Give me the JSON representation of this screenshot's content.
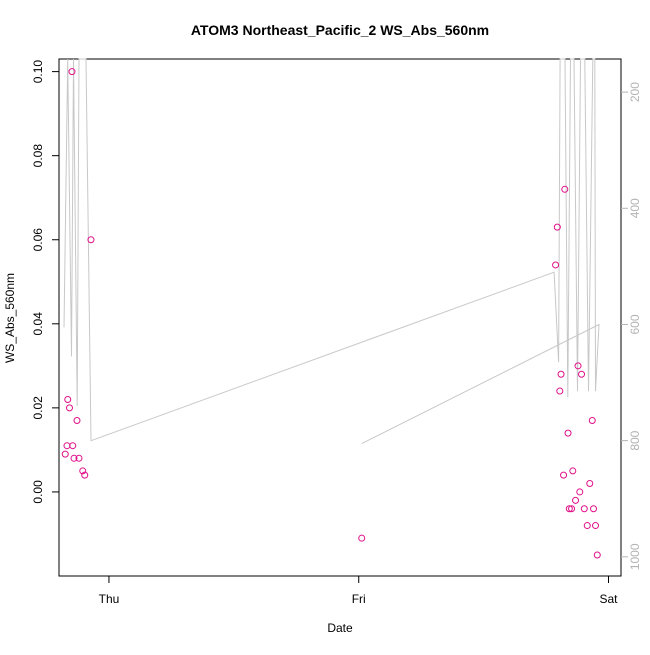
{
  "chart_data": {
    "type": "scatter",
    "title": "ATOM3 Northeast_Pacific_2 WS_Abs_560nm",
    "xlabel": "Date",
    "ylabel": "WS_Abs_560nm",
    "x_ticks": [
      "Thu",
      "Fri",
      "Sat"
    ],
    "xlim": [
      -0.2,
      2.05
    ],
    "ylim": [
      -0.02,
      0.103
    ],
    "y_ticks": [
      "0.00",
      "0.02",
      "0.04",
      "0.06",
      "0.08",
      "0.10"
    ],
    "y_tick_values": [
      0.0,
      0.02,
      0.04,
      0.06,
      0.08,
      0.1
    ],
    "y2_ticks": [
      "200",
      "400",
      "600",
      "800",
      "1000"
    ],
    "y2_tick_values": [
      200,
      400,
      600,
      800,
      1000
    ],
    "y2lim": [
      1033,
      143
    ],
    "grid": false,
    "series": [
      {
        "values_color": "#e0108a",
        "points": [
          {
            "x": -0.175,
            "y": 0.009
          },
          {
            "x": -0.168,
            "y": 0.011
          },
          {
            "x": -0.165,
            "y": 0.022
          },
          {
            "x": -0.158,
            "y": 0.02
          },
          {
            "x": -0.148,
            "y": 0.1
          },
          {
            "x": -0.145,
            "y": 0.011
          },
          {
            "x": -0.14,
            "y": 0.008
          },
          {
            "x": -0.12,
            "y": 0.008
          },
          {
            "x": -0.128,
            "y": 0.017
          },
          {
            "x": -0.105,
            "y": 0.005
          },
          {
            "x": -0.097,
            "y": 0.004
          },
          {
            "x": -0.072,
            "y": 0.06
          },
          {
            "x": 1.012,
            "y": -0.011
          },
          {
            "x": 1.788,
            "y": 0.054
          },
          {
            "x": 1.795,
            "y": 0.063
          },
          {
            "x": 1.805,
            "y": 0.024
          },
          {
            "x": 1.81,
            "y": 0.028
          },
          {
            "x": 1.825,
            "y": 0.072
          },
          {
            "x": 1.82,
            "y": 0.004
          },
          {
            "x": 1.838,
            "y": 0.014
          },
          {
            "x": 1.843,
            "y": -0.004
          },
          {
            "x": 1.852,
            "y": -0.004
          },
          {
            "x": 1.857,
            "y": 0.005
          },
          {
            "x": 1.868,
            "y": -0.002
          },
          {
            "x": 1.878,
            "y": 0.03
          },
          {
            "x": 1.885,
            "y": 0.0
          },
          {
            "x": 1.892,
            "y": 0.028
          },
          {
            "x": 1.903,
            "y": -0.004
          },
          {
            "x": 1.915,
            "y": -0.008
          },
          {
            "x": 1.925,
            "y": 0.002
          },
          {
            "x": 1.935,
            "y": 0.017
          },
          {
            "x": 1.94,
            "y": -0.004
          },
          {
            "x": 1.948,
            "y": -0.008
          },
          {
            "x": 1.955,
            "y": -0.015
          }
        ]
      },
      {
        "axis": "right",
        "values_color": "#c8c8c8",
        "points": [
          {
            "x": -0.18,
            "y": 605
          },
          {
            "x": -0.165,
            "y": 143
          },
          {
            "x": -0.15,
            "y": 655
          },
          {
            "x": -0.142,
            "y": 143
          },
          {
            "x": -0.127,
            "y": 740
          },
          {
            "x": -0.12,
            "y": 143
          },
          {
            "x": -0.11,
            "y": 143
          },
          {
            "x": -0.092,
            "y": 143
          },
          {
            "x": -0.072,
            "y": 800
          },
          {
            "x": 1.782,
            "y": 510
          },
          {
            "x": 1.8,
            "y": 665
          },
          {
            "x": 1.806,
            "y": 143
          },
          {
            "x": 1.826,
            "y": 143
          },
          {
            "x": 1.837,
            "y": 725
          },
          {
            "x": 1.848,
            "y": 143
          },
          {
            "x": 1.862,
            "y": 143
          },
          {
            "x": 1.876,
            "y": 715
          },
          {
            "x": 1.888,
            "y": 143
          },
          {
            "x": 1.905,
            "y": 143
          },
          {
            "x": 1.92,
            "y": 715
          },
          {
            "x": 1.937,
            "y": 143
          },
          {
            "x": 1.945,
            "y": 143
          },
          {
            "x": 1.948,
            "y": 715
          },
          {
            "x": 1.962,
            "y": 600
          },
          {
            "x": 1.012,
            "y": 805
          }
        ]
      }
    ]
  }
}
